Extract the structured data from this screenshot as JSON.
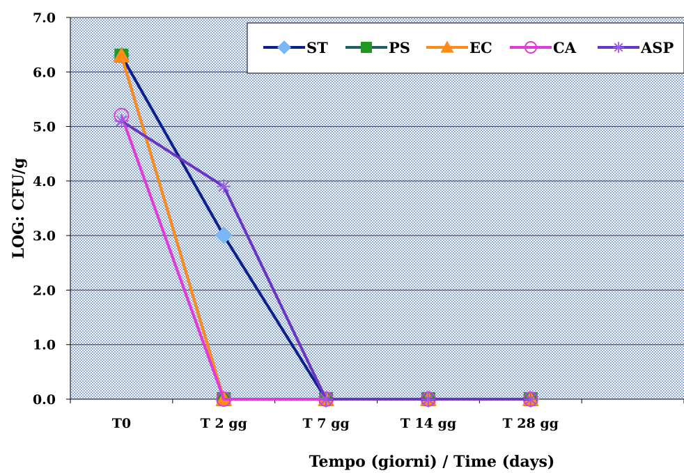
{
  "chart_data": {
    "type": "line",
    "title": "",
    "xlabel": "Tempo (giorni) / Time (days)",
    "ylabel": "LOG: CFU/g",
    "categories": [
      "T0",
      "T 2 gg",
      "T 7 gg",
      "T 14 gg",
      "T 28 gg"
    ],
    "ylim": [
      0,
      7
    ],
    "yticks": [
      "0.0",
      "1.0",
      "2.0",
      "3.0",
      "4.0",
      "5.0",
      "6.0",
      "7.0"
    ],
    "grid": true,
    "legend_position": "top-right",
    "series": [
      {
        "name": "ST",
        "values": [
          6.3,
          3.0,
          0,
          0,
          0
        ],
        "color": "#0d1f8c",
        "marker_color": "#7ab8f5",
        "marker": "diamond"
      },
      {
        "name": "PS",
        "values": [
          6.3,
          0,
          0,
          0,
          0
        ],
        "color": "#1f5f6a",
        "marker_color": "#1f9a1f",
        "marker": "square"
      },
      {
        "name": "EC",
        "values": [
          6.3,
          0,
          0,
          0,
          0
        ],
        "color": "#ff8c1a",
        "marker_color": "#ff8c1a",
        "marker": "triangle"
      },
      {
        "name": "CA",
        "values": [
          5.2,
          0,
          0,
          0,
          0
        ],
        "color": "#e03ad8",
        "marker_color": "#e03ad8",
        "marker": "circle-open"
      },
      {
        "name": "ASP",
        "values": [
          5.1,
          3.9,
          0,
          0,
          0
        ],
        "color": "#6a35c0",
        "marker_color": "#9a5ae8",
        "marker": "star"
      }
    ]
  }
}
